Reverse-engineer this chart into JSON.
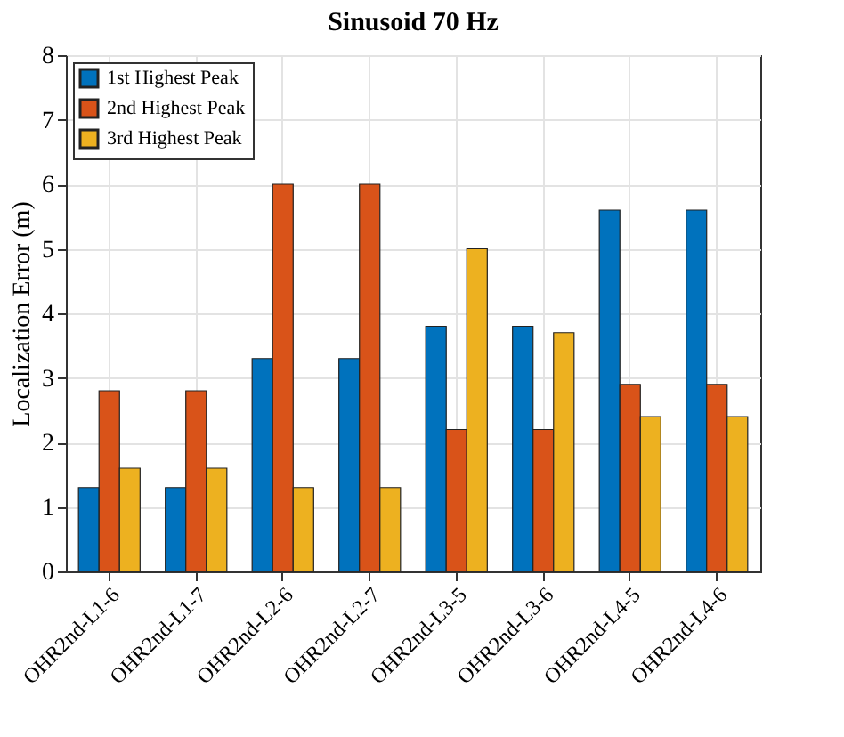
{
  "chart_data": {
    "type": "bar",
    "title": "Sinusoid 70 Hz",
    "ylabel": "Localization Error (m)",
    "categories": [
      "OHR2nd-L1-6",
      "OHR2nd-L1-7",
      "OHR2nd-L2-6",
      "OHR2nd-L2-7",
      "OHR2nd-L3-5",
      "OHR2nd-L3-6",
      "OHR2nd-L4-5",
      "OHR2nd-L4-6"
    ],
    "series": [
      {
        "name": "1st  Highest Peak",
        "color": "#0072bd",
        "values": [
          1.3,
          1.3,
          3.3,
          3.3,
          3.8,
          3.8,
          5.6,
          5.6
        ]
      },
      {
        "name": "2nd Highest Peak",
        "color": "#d95319",
        "values": [
          2.8,
          2.8,
          6.0,
          6.0,
          2.2,
          2.2,
          2.9,
          2.9
        ]
      },
      {
        "name": "3rd  Highest Peak",
        "color": "#edb120",
        "values": [
          1.6,
          1.6,
          1.3,
          1.3,
          5.0,
          3.7,
          2.4,
          2.4
        ]
      }
    ],
    "ylim": [
      0,
      8
    ],
    "yticks": [
      0,
      1,
      2,
      3,
      4,
      5,
      6,
      7,
      8
    ],
    "grid": true,
    "legend": "top left"
  }
}
